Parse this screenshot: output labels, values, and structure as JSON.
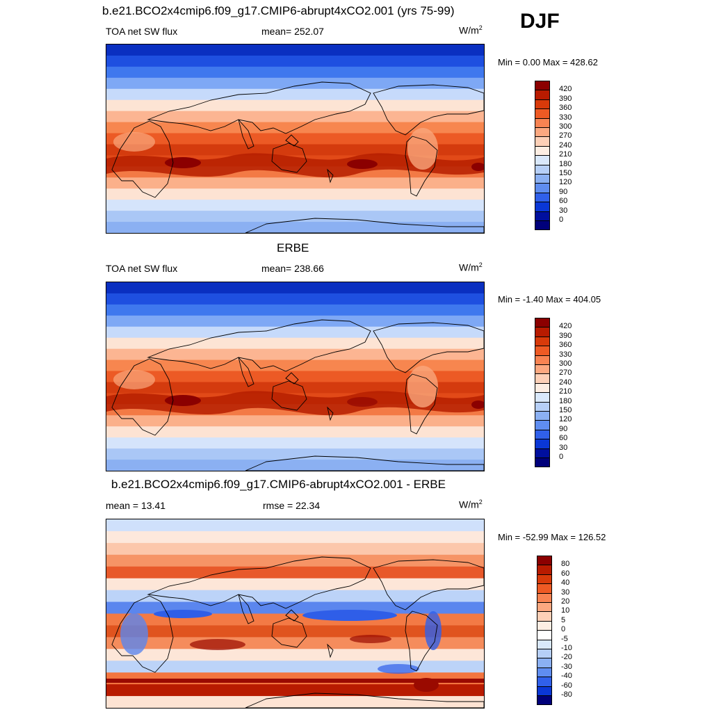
{
  "season": "DJF",
  "panels": [
    {
      "title": "b.e21.BCO2x4cmip6.f09_g17.CMIP6-abrupt4xCO2.001 (yrs 75-99)",
      "left": "TOA net SW flux",
      "center": "mean= 252.07",
      "unit_base": "W/m",
      "unit_exp": "2",
      "minmax": "Min =   0.00 Max = 428.62",
      "colorbar": {
        "levels": [
          "420",
          "390",
          "360",
          "330",
          "300",
          "270",
          "240",
          "210",
          "180",
          "150",
          "120",
          "90",
          "60",
          "30",
          "0"
        ],
        "colors": [
          "#8b0000",
          "#b81b00",
          "#d83a0a",
          "#ee5a24",
          "#f88352",
          "#fca880",
          "#fdd0b7",
          "#fdeee3",
          "#d9e8fb",
          "#b6cff7",
          "#8bb0f2",
          "#5f8df0",
          "#3060ea",
          "#0a37d6",
          "#000f9e",
          "#00007a"
        ]
      }
    },
    {
      "title": "ERBE",
      "left": "TOA net SW flux",
      "center": "mean= 238.66",
      "unit_base": "W/m",
      "unit_exp": "2",
      "minmax": "Min =  -1.40 Max = 404.05",
      "colorbar": {
        "levels": [
          "420",
          "390",
          "360",
          "330",
          "300",
          "270",
          "240",
          "210",
          "180",
          "150",
          "120",
          "90",
          "60",
          "30",
          "0"
        ],
        "colors": [
          "#8b0000",
          "#b81b00",
          "#d83a0a",
          "#ee5a24",
          "#f88352",
          "#fca880",
          "#fdd0b7",
          "#fdeee3",
          "#d9e8fb",
          "#b6cff7",
          "#8bb0f2",
          "#5f8df0",
          "#3060ea",
          "#0a37d6",
          "#000f9e",
          "#00007a"
        ]
      }
    },
    {
      "title": "b.e21.BCO2x4cmip6.f09_g17.CMIP6-abrupt4xCO2.001 - ERBE",
      "left": "mean =  13.41",
      "center": "rmse =  22.34",
      "unit_base": "W/m",
      "unit_exp": "2",
      "minmax": "Min = -52.99 Max = 126.52",
      "colorbar": {
        "levels": [
          "80",
          "60",
          "40",
          "30",
          "20",
          "10",
          "5",
          "0",
          "-5",
          "-10",
          "-20",
          "-30",
          "-40",
          "-60",
          "-80"
        ],
        "colors": [
          "#8b0000",
          "#b81b00",
          "#d83a0a",
          "#ee5a24",
          "#f88352",
          "#fca880",
          "#fdd0b7",
          "#fdeee3",
          "#ffffff",
          "#d9e8fb",
          "#b6cff7",
          "#8bb0f2",
          "#5f8df0",
          "#3060ea",
          "#0a37d6",
          "#00007a"
        ]
      }
    }
  ],
  "maps": {
    "full_field": {
      "bands": [
        "#0a2fc0",
        "#1e4fe0",
        "#3f78ee",
        "#7ea8f5",
        "#c6dafb",
        "#fde4d4",
        "#fcb592",
        "#f7864f",
        "#ec5a25",
        "#d43b0e",
        "#e24a18",
        "#f37a45",
        "#fbb08a",
        "#fde3d3",
        "#d5e4fb",
        "#aac7f6",
        "#8bb0f2"
      ],
      "blobs_dark": "#b51f00",
      "land_light": "#f9a67c"
    },
    "difference": {
      "bands": [
        "#cfe0fb",
        "#fde8dc",
        "#fcc7ab",
        "#f69466",
        "#e8592a",
        "#fde6d8",
        "#bcd3f8",
        "#5b86ee",
        "#f37a45",
        "#e0541f",
        "#f58c5c",
        "#fde6d8",
        "#bcd3f8",
        "#f3753f",
        "#b81b00",
        "#fde3d3"
      ],
      "neg_blob": "#2f5ee8",
      "pos_blob": "#9a0a00"
    }
  }
}
